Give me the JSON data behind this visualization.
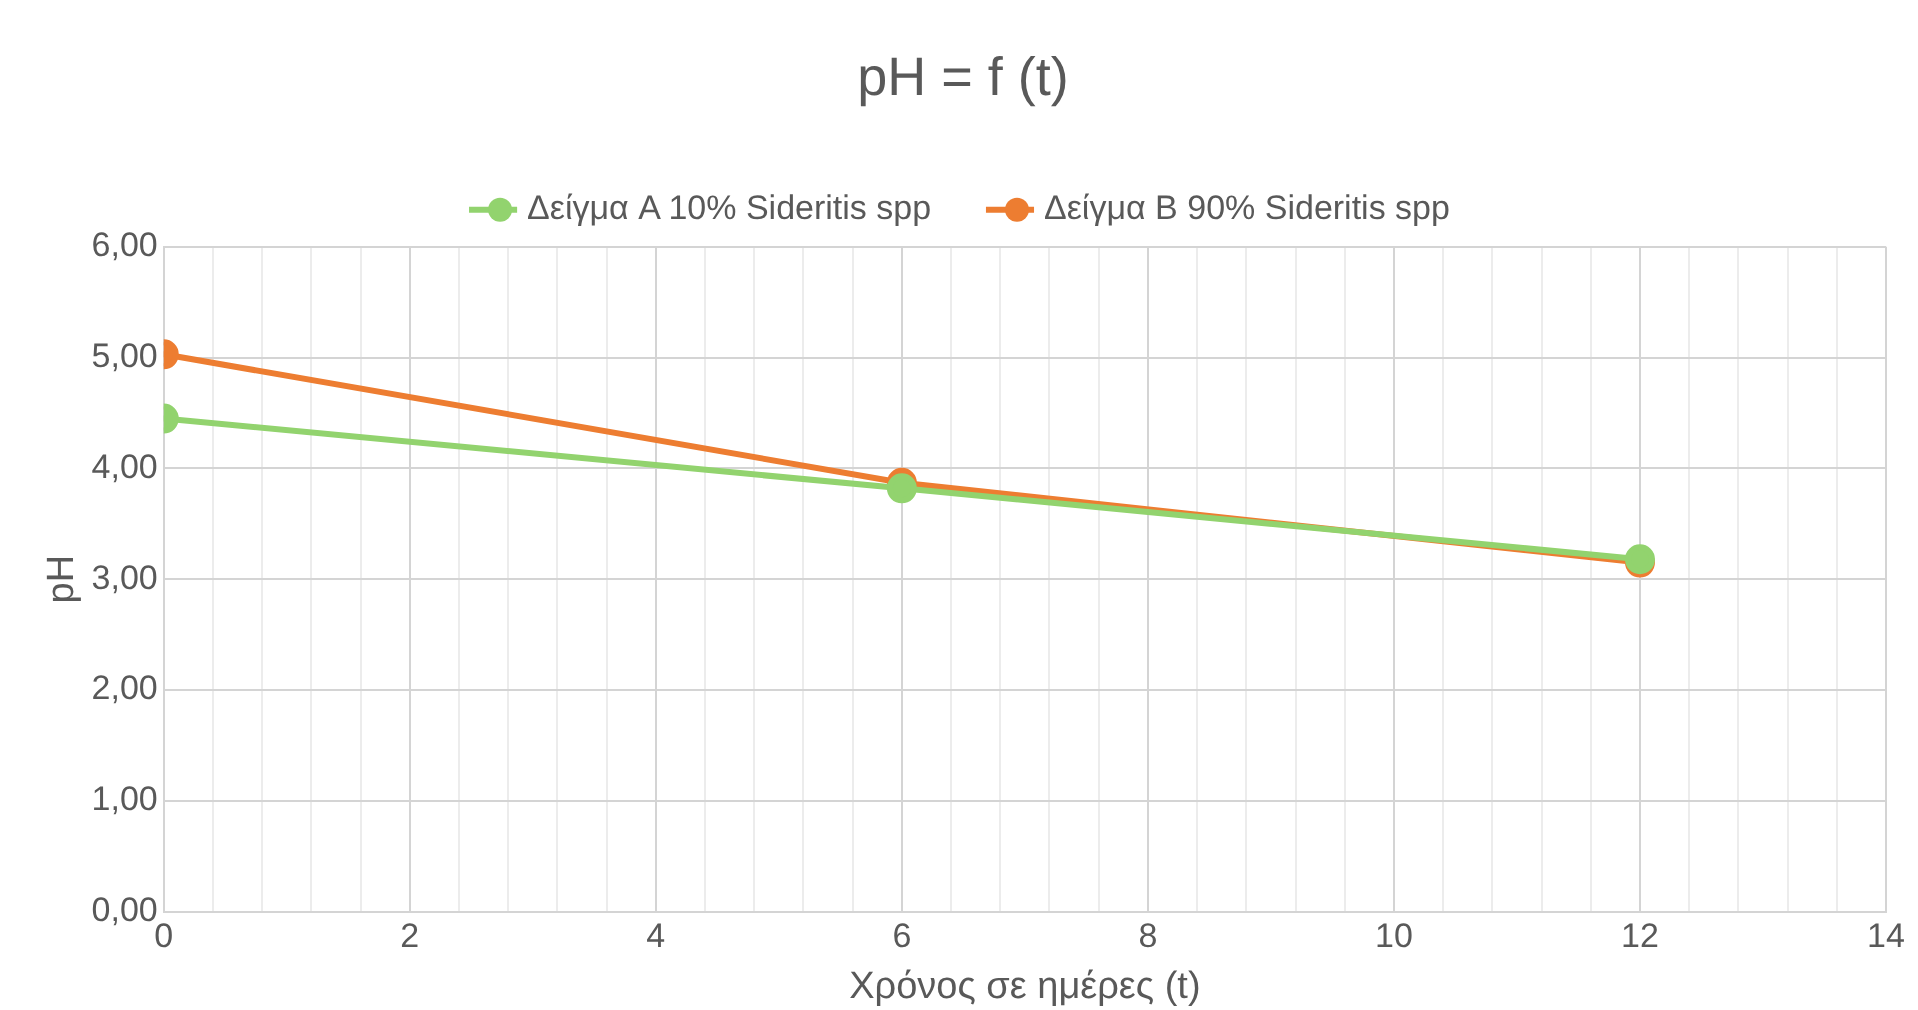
{
  "chart_data": {
    "type": "line",
    "title": "pH = f (t)",
    "xlabel": "Χρόνος σε ημέρες (t)",
    "ylabel": "pH",
    "x": [
      0,
      6,
      12
    ],
    "series": [
      {
        "name": "Δείγμα A 10% Sideritis spp",
        "color": "#92d36e",
        "values": [
          4.45,
          3.82,
          3.18
        ]
      },
      {
        "name": "Δείγμα B 90% Sideritis spp",
        "color": "#ed7d31",
        "values": [
          5.03,
          3.87,
          3.15
        ]
      }
    ],
    "xlim": [
      0,
      14
    ],
    "xticks": [
      0,
      {
        "value": 0.4,
        "label": null
      },
      {
        "value": 0.8,
        "label": null
      },
      {
        "value": 1.2,
        "label": null
      },
      {
        "value": 1.6,
        "label": null
      },
      2,
      {
        "value": 2.4,
        "label": null
      },
      {
        "value": 2.8,
        "label": null
      },
      {
        "value": 3.2,
        "label": null
      },
      {
        "value": 3.6,
        "label": null
      },
      4,
      {
        "value": 4.4,
        "label": null
      },
      {
        "value": 4.8,
        "label": null
      },
      {
        "value": 5.2,
        "label": null
      },
      {
        "value": 5.6,
        "label": null
      },
      6,
      {
        "value": 6.4,
        "label": null
      },
      {
        "value": 6.8,
        "label": null
      },
      {
        "value": 7.2,
        "label": null
      },
      {
        "value": 7.6,
        "label": null
      },
      8,
      {
        "value": 8.4,
        "label": null
      },
      {
        "value": 8.8,
        "label": null
      },
      {
        "value": 9.2,
        "label": null
      },
      {
        "value": 9.6,
        "label": null
      },
      10,
      {
        "value": 10.4,
        "label": null
      },
      {
        "value": 10.8,
        "label": null
      },
      {
        "value": 11.2,
        "label": null
      },
      {
        "value": 11.6,
        "label": null
      },
      12,
      {
        "value": 12.4,
        "label": null
      },
      {
        "value": 12.8,
        "label": null
      },
      {
        "value": 13.2,
        "label": null
      },
      {
        "value": 13.6,
        "label": null
      },
      14
    ],
    "ylim": [
      0,
      6
    ],
    "yticks": [
      {
        "value": 0,
        "label": "0,00"
      },
      {
        "value": 1,
        "label": "1,00"
      },
      {
        "value": 2,
        "label": "2,00"
      },
      {
        "value": 3,
        "label": "3,00"
      },
      {
        "value": 4,
        "label": "4,00"
      },
      {
        "value": 5,
        "label": "5,00"
      },
      {
        "value": 6,
        "label": "6,00"
      }
    ],
    "grid": true,
    "legend": "top",
    "marker": "circle",
    "line_style": "solid"
  }
}
